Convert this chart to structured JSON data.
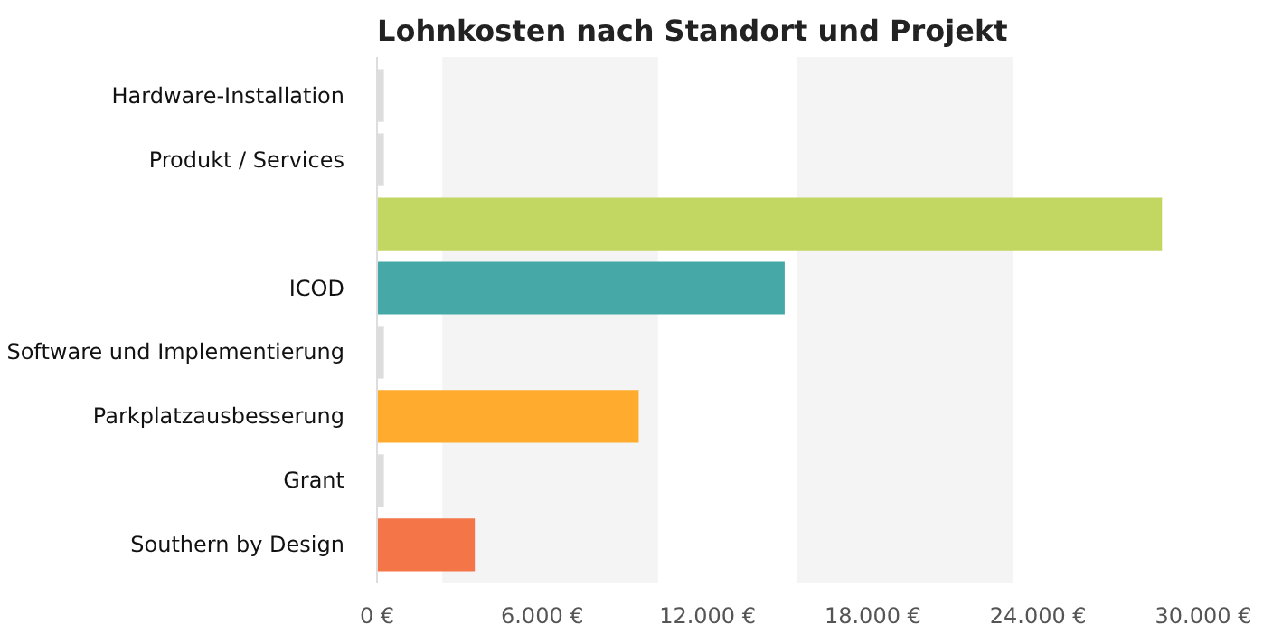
{
  "chart_data": {
    "type": "bar",
    "orientation": "horizontal",
    "title": "Lohnkosten nach Standort und Projekt",
    "categories": [
      "Hardware-Installation",
      "Produkt / Services",
      null,
      "ICOD",
      "Software und Implementierung",
      "Parkplatzausbesserung",
      "Grant",
      "Southern by Design"
    ],
    "values": [
      250,
      250,
      28500,
      14800,
      250,
      9500,
      250,
      3550
    ],
    "colors": [
      "#dddddd",
      "#dddddd",
      "#c2d662",
      "#47a8a8",
      "#dddddd",
      "#ffab2e",
      "#dddddd",
      "#f37548"
    ],
    "xlim": [
      0,
      30000
    ],
    "xticks": [
      {
        "value": 0,
        "label": "0 €"
      },
      {
        "value": 6000,
        "label": "6.000 €"
      },
      {
        "value": 12000,
        "label": "12.000 €"
      },
      {
        "value": 18000,
        "label": "18.000 €"
      },
      {
        "value": 24000,
        "label": "24.000 €"
      },
      {
        "value": 30000,
        "label": "30.000 €"
      }
    ],
    "bands": [
      {
        "axis": "x",
        "from": 2370,
        "to": 10200,
        "color": "#f4f4f4"
      },
      {
        "axis": "x",
        "from": 15260,
        "to": 23100,
        "color": "#f4f4f4"
      }
    ],
    "grid": false
  }
}
